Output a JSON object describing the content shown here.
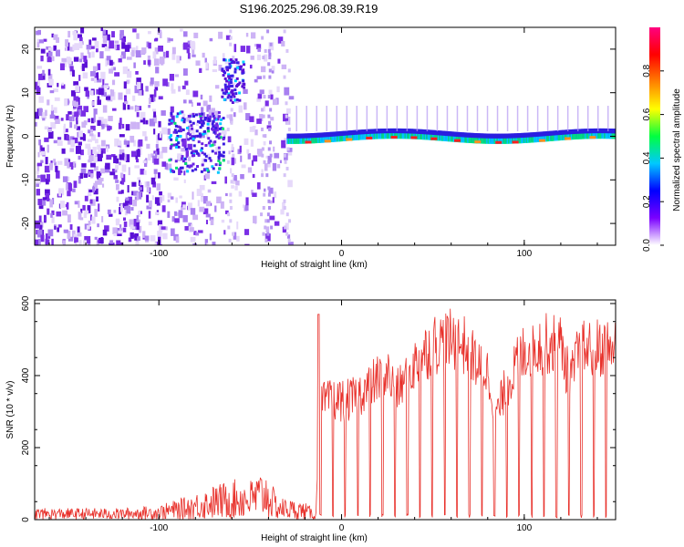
{
  "title": "S196.2025.296.08.39.R19",
  "colors": {
    "snr_line": "#e8302a",
    "spectro_low": "#d9c6f5",
    "spectro_mid": "#6a1fe0",
    "frame": "#000000"
  },
  "chart_data": [
    {
      "type": "heatmap",
      "name": "spectrogram",
      "xlabel": "Height of straight line (km)",
      "ylabel": "Frequency (Hz)",
      "xlim": [
        -168,
        150
      ],
      "ylim": [
        -25,
        25
      ],
      "xticks": [
        -100,
        0,
        100
      ],
      "xtick_labels": [
        "-100",
        "0",
        "100"
      ],
      "yticks": [
        -20,
        -10,
        0,
        10,
        20
      ],
      "ytick_labels": [
        "-20",
        "-10",
        "0",
        "10",
        "20"
      ],
      "colorbar": {
        "label": "Normalized spectral amplitude",
        "range": [
          0,
          1
        ],
        "ticks": [
          0.0,
          0.2,
          0.4,
          0.6,
          0.8
        ],
        "tick_labels": [
          "0.0",
          "0.2",
          "0.4",
          "0.6",
          "0.8"
        ],
        "stops": [
          "#ffffff",
          "#7a00ff",
          "#0000ff",
          "#00c8ff",
          "#00ff40",
          "#ffff00",
          "#ff8000",
          "#ff0000",
          "#ff0080"
        ]
      },
      "features": [
        {
          "desc": "broadband noise",
          "x_range": [
            -168,
            -28
          ],
          "freq_range": [
            -25,
            25
          ]
        },
        {
          "desc": "strong blob",
          "x_range": [
            -66,
            -54
          ],
          "freq_range": [
            8,
            18
          ]
        },
        {
          "desc": "main tone",
          "x_range": [
            -30,
            150
          ],
          "freq": -1
        }
      ]
    },
    {
      "type": "line",
      "name": "snr",
      "xlabel": "Height of straight line (km)",
      "ylabel": "SNR (10 * v/v)",
      "xlim": [
        -168,
        150
      ],
      "ylim": [
        0,
        610
      ],
      "xticks": [
        -100,
        0,
        100
      ],
      "xtick_labels": [
        "-100",
        "0",
        "100"
      ],
      "yticks": [
        0,
        200,
        400,
        600
      ],
      "ytick_labels": [
        "0",
        "200",
        "400",
        "600"
      ],
      "envelope_x": [
        -168,
        -120,
        -100,
        -85,
        -70,
        -60,
        -50,
        -42,
        -35,
        -20,
        -14,
        -12,
        -5,
        5,
        15,
        25,
        30,
        40,
        50,
        60,
        70,
        75,
        80,
        85,
        90,
        100,
        110,
        120,
        125,
        130,
        140,
        150
      ],
      "envelope_y": [
        20,
        20,
        25,
        40,
        60,
        70,
        70,
        90,
        40,
        30,
        15,
        330,
        340,
        340,
        380,
        420,
        360,
        440,
        500,
        510,
        490,
        430,
        420,
        300,
        380,
        480,
        500,
        500,
        390,
        480,
        490,
        490
      ],
      "dropouts_start": -12,
      "dropout_spacing": 6.8
    }
  ]
}
